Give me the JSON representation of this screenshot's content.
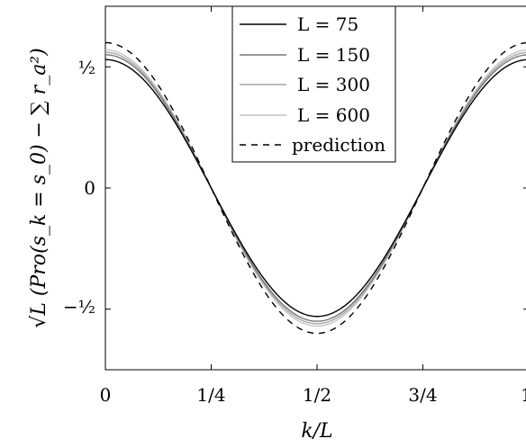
{
  "chart_data": {
    "type": "line",
    "xlabel": "k/L",
    "ylabel": "√L (Pro(s_k = s_0) − ∑ r_a²)",
    "xlim": [
      0,
      1
    ],
    "ylim": [
      -0.75,
      0.75
    ],
    "x_ticks": [
      0,
      0.25,
      0.5,
      0.75,
      1
    ],
    "x_tick_labels": [
      "0",
      "1/4",
      "1/2",
      "3/4",
      "1"
    ],
    "y_ticks": [
      -0.5,
      0,
      0.5
    ],
    "y_tick_labels": [
      "−½",
      "0",
      "½"
    ],
    "grid": false,
    "legend_position": "top-center",
    "series": [
      {
        "name": "L = 75",
        "style": "solid",
        "color": "#000000",
        "amplitude": 0.53
      },
      {
        "name": "L = 150",
        "style": "solid",
        "color": "#777777",
        "amplitude": 0.55
      },
      {
        "name": "L = 300",
        "style": "solid",
        "color": "#a6a6a6",
        "amplitude": 0.56
      },
      {
        "name": "L = 600",
        "style": "solid",
        "color": "#c4c4c4",
        "amplitude": 0.57
      },
      {
        "name": "prediction",
        "style": "dashed",
        "color": "#000000",
        "amplitude": 0.6
      }
    ],
    "series_formula": "y = amplitude · cos(2π·x)"
  }
}
